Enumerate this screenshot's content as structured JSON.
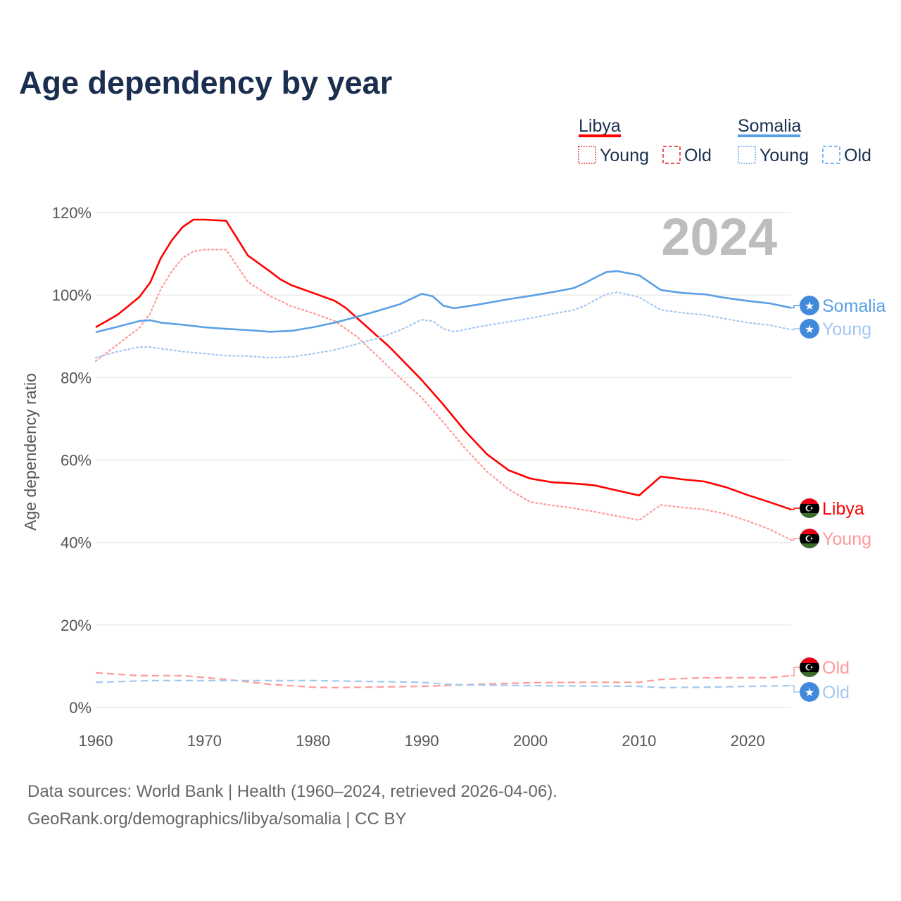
{
  "title": "Age dependency by year",
  "year_watermark": "2024",
  "legend": {
    "groups": [
      {
        "country": "Libya",
        "young": "Young",
        "old": "Old"
      },
      {
        "country": "Somalia",
        "young": "Young",
        "old": "Old"
      }
    ]
  },
  "footer": {
    "line1": "Data sources: World Bank | Health (1960–2024, retrieved 2026-04-06).",
    "line2": "GeoRank.org/demographics/libya/somalia | CC BY"
  },
  "colors": {
    "libya": "#ff0000",
    "libya_light": "#ff9a9a",
    "somalia": "#5aa0e6",
    "somalia_light": "#a3c8f0",
    "title": "#1a2e4f"
  },
  "chart_data": {
    "type": "line",
    "title": "Age dependency by year",
    "xlabel": "",
    "ylabel": "Age dependency ratio",
    "xlim": [
      1960,
      2024
    ],
    "ylim": [
      0,
      120
    ],
    "yticks": [
      "0%",
      "20%",
      "40%",
      "60%",
      "80%",
      "100%",
      "120%"
    ],
    "yticks_values": [
      0,
      20,
      40,
      60,
      80,
      100,
      120
    ],
    "xticks": [
      "1960",
      "1970",
      "1980",
      "1990",
      "2000",
      "2010",
      "2020"
    ],
    "grid": true,
    "series": [
      {
        "name": "Libya",
        "end_label": "Libya",
        "color_key": "libya",
        "style": "solid",
        "x": [
          1960,
          1962,
          1964,
          1965,
          1966,
          1967,
          1968,
          1969,
          1970,
          1972,
          1974,
          1976,
          1977,
          1978,
          1980,
          1982,
          1983,
          1985,
          1987,
          1990,
          1992,
          1994,
          1996,
          1998,
          2000,
          2002,
          2004,
          2005,
          2006,
          2008,
          2010,
          2012,
          2014,
          2016,
          2018,
          2020,
          2022,
          2024
        ],
        "y": [
          92.2,
          95.2,
          99.5,
          103,
          109,
          113.3,
          116.5,
          118.3,
          118.3,
          118,
          109.6,
          105.8,
          103.8,
          102.4,
          100.5,
          98.6,
          96.9,
          92.2,
          87.5,
          79.4,
          73.4,
          67,
          61.4,
          57.5,
          55.5,
          54.6,
          54.3,
          54.1,
          53.8,
          52.6,
          51.4,
          56,
          55.3,
          54.8,
          53.4,
          51.5,
          49.8,
          48
        ]
      },
      {
        "name": "Libya Young",
        "end_label": "Young",
        "color_key": "libya_light",
        "style": "dotted",
        "x": [
          1960,
          1962,
          1964,
          1965,
          1966,
          1967,
          1968,
          1969,
          1970,
          1972,
          1974,
          1976,
          1978,
          1980,
          1982,
          1984,
          1986,
          1988,
          1990,
          1992,
          1994,
          1996,
          1998,
          2000,
          2002,
          2004,
          2006,
          2008,
          2010,
          2012,
          2014,
          2016,
          2018,
          2020,
          2022,
          2024
        ],
        "y": [
          84,
          88,
          92,
          95.5,
          101.5,
          105.8,
          109,
          110.6,
          111,
          111,
          103.2,
          99.8,
          97.3,
          95.6,
          93.7,
          90,
          85,
          79.9,
          75.1,
          69.1,
          62.8,
          57.2,
          52.9,
          49.8,
          49,
          48.3,
          47.4,
          46.4,
          45.4,
          49.1,
          48.5,
          48,
          46.9,
          45.2,
          43.2,
          40.6
        ]
      },
      {
        "name": "Libya Old",
        "end_label": "Old",
        "color_key": "libya_light",
        "style": "dashed",
        "x": [
          1960,
          1964,
          1968,
          1972,
          1976,
          1980,
          1982,
          1990,
          1995,
          2000,
          2005,
          2010,
          2012,
          2016,
          2020,
          2022,
          2024
        ],
        "y": [
          8.4,
          7.7,
          7.7,
          6.8,
          5.6,
          4.9,
          4.8,
          5.1,
          5.6,
          6,
          6.1,
          6.1,
          6.8,
          7.2,
          7.2,
          7.2,
          7.7
        ]
      },
      {
        "name": "Somalia",
        "end_label": "Somalia",
        "color_key": "somalia",
        "style": "solid",
        "x": [
          1960,
          1962,
          1964,
          1965,
          1966,
          1968,
          1970,
          1972,
          1974,
          1976,
          1978,
          1980,
          1982,
          1984,
          1986,
          1988,
          1990,
          1991,
          1992,
          1993,
          1995,
          1998,
          2000,
          2002,
          2004,
          2005,
          2006,
          2007,
          2008,
          2010,
          2012,
          2014,
          2016,
          2018,
          2020,
          2022,
          2024
        ],
        "y": [
          91,
          92.3,
          93.7,
          93.9,
          93.3,
          92.8,
          92.2,
          91.8,
          91.5,
          91.1,
          91.3,
          92.2,
          93.3,
          94.7,
          96.2,
          97.8,
          100.3,
          99.7,
          97.4,
          96.8,
          97.6,
          99,
          99.8,
          100.7,
          101.7,
          102.9,
          104.3,
          105.6,
          105.8,
          104.8,
          101.2,
          100.5,
          100.2,
          99.3,
          98.6,
          98,
          96.9
        ]
      },
      {
        "name": "Somalia Young",
        "end_label": "Young",
        "color_key": "somalia_light",
        "style": "dotted",
        "x": [
          1960,
          1962,
          1964,
          1965,
          1966,
          1968,
          1970,
          1972,
          1974,
          1976,
          1978,
          1980,
          1982,
          1984,
          1986,
          1988,
          1990,
          1991,
          1992,
          1993,
          1995,
          1998,
          2000,
          2002,
          2004,
          2005,
          2006,
          2007,
          2008,
          2010,
          2012,
          2014,
          2016,
          2018,
          2020,
          2022,
          2024
        ],
        "y": [
          84.8,
          86.3,
          87.4,
          87.4,
          87,
          86.3,
          85.8,
          85.3,
          85.2,
          84.8,
          85,
          85.8,
          86.7,
          88.1,
          89.6,
          91.5,
          94,
          93.7,
          91.8,
          91.1,
          92.2,
          93.5,
          94.4,
          95.4,
          96.4,
          97.4,
          98.8,
          100.2,
          100.7,
          99.5,
          96.4,
          95.7,
          95.2,
          94.2,
          93.3,
          92.7,
          91.6
        ]
      },
      {
        "name": "Somalia Old",
        "end_label": "Old",
        "color_key": "somalia_light",
        "style": "dashed",
        "x": [
          1960,
          1965,
          1970,
          1975,
          1980,
          1990,
          1993,
          2000,
          2010,
          2012,
          2016,
          2020,
          2024
        ],
        "y": [
          6.1,
          6.5,
          6.5,
          6.5,
          6.5,
          6.1,
          5.5,
          5.3,
          5.1,
          4.8,
          4.9,
          5.1,
          5.3
        ]
      }
    ]
  }
}
